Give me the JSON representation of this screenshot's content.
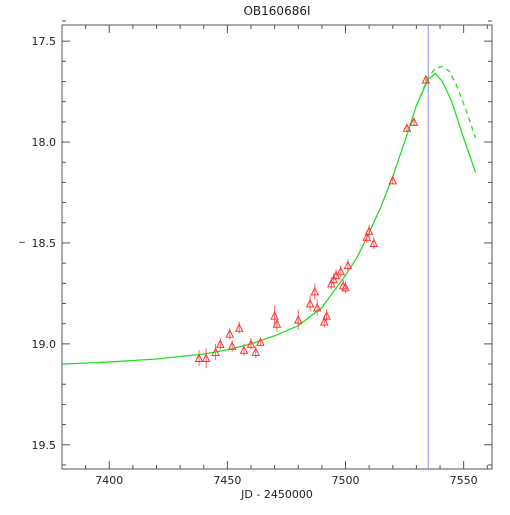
{
  "chart_data": {
    "type": "scatter",
    "title": "OB160686I",
    "xlabel": "JD - 2450000",
    "ylabel": "_",
    "xlim": [
      7380,
      7562
    ],
    "ylim": [
      19.62,
      17.42
    ],
    "y_inverted": true,
    "xticks": [
      7400,
      7450,
      7500,
      7550
    ],
    "yticks": [
      17.5,
      18.0,
      18.5,
      19.0,
      19.5
    ],
    "xtick_labels": [
      "7400",
      "7450",
      "7500",
      "7550"
    ],
    "ytick_labels": [
      "17.5",
      "18.0",
      "18.5",
      "19.0",
      "19.5"
    ],
    "grid": false,
    "vertical_line": {
      "x": 7535,
      "color": "#8888ff"
    },
    "colors": {
      "points": "#ff3333",
      "errorbars": "#ff6666",
      "model": "#22dd22"
    },
    "series": [
      {
        "name": "",
        "kind": "points",
        "marker": "triangle",
        "points": [
          {
            "x": 7438,
            "y": 19.07,
            "e": 0.04
          },
          {
            "x": 7441,
            "y": 19.07,
            "e": 0.05
          },
          {
            "x": 7445,
            "y": 19.04,
            "e": 0.04
          },
          {
            "x": 7447,
            "y": 19.0,
            "e": 0.03
          },
          {
            "x": 7451,
            "y": 18.95,
            "e": 0.03
          },
          {
            "x": 7452,
            "y": 19.01,
            "e": 0.03
          },
          {
            "x": 7455,
            "y": 18.92,
            "e": 0.03
          },
          {
            "x": 7457,
            "y": 19.03,
            "e": 0.03
          },
          {
            "x": 7460,
            "y": 19.0,
            "e": 0.03
          },
          {
            "x": 7462,
            "y": 19.04,
            "e": 0.03
          },
          {
            "x": 7464,
            "y": 18.99,
            "e": 0.02
          },
          {
            "x": 7470,
            "y": 18.86,
            "e": 0.05
          },
          {
            "x": 7471,
            "y": 18.9,
            "e": 0.04
          },
          {
            "x": 7480,
            "y": 18.88,
            "e": 0.05
          },
          {
            "x": 7485,
            "y": 18.8,
            "e": 0.04
          },
          {
            "x": 7487,
            "y": 18.74,
            "e": 0.04
          },
          {
            "x": 7488,
            "y": 18.82,
            "e": 0.04
          },
          {
            "x": 7491,
            "y": 18.89,
            "e": 0.03
          },
          {
            "x": 7492,
            "y": 18.86,
            "e": 0.03
          },
          {
            "x": 7494,
            "y": 18.7,
            "e": 0.03
          },
          {
            "x": 7495,
            "y": 18.68,
            "e": 0.03
          },
          {
            "x": 7496,
            "y": 18.66,
            "e": 0.03
          },
          {
            "x": 7498,
            "y": 18.64,
            "e": 0.03
          },
          {
            "x": 7499,
            "y": 18.71,
            "e": 0.03
          },
          {
            "x": 7500,
            "y": 18.72,
            "e": 0.03
          },
          {
            "x": 7501,
            "y": 18.61,
            "e": 0.03
          },
          {
            "x": 7509,
            "y": 18.47,
            "e": 0.03
          },
          {
            "x": 7510,
            "y": 18.44,
            "e": 0.03
          },
          {
            "x": 7512,
            "y": 18.5,
            "e": 0.03
          },
          {
            "x": 7520,
            "y": 18.19,
            "e": 0.02
          },
          {
            "x": 7526,
            "y": 17.93,
            "e": 0.02
          },
          {
            "x": 7529,
            "y": 17.9,
            "e": 0.02
          },
          {
            "x": 7534,
            "y": 17.69,
            "e": 0.02
          }
        ]
      },
      {
        "name": "",
        "kind": "line",
        "style": "solid",
        "points": [
          {
            "x": 7380,
            "y": 19.1
          },
          {
            "x": 7400,
            "y": 19.09
          },
          {
            "x": 7420,
            "y": 19.075
          },
          {
            "x": 7440,
            "y": 19.05
          },
          {
            "x": 7450,
            "y": 19.03
          },
          {
            "x": 7460,
            "y": 19.0
          },
          {
            "x": 7470,
            "y": 18.96
          },
          {
            "x": 7480,
            "y": 18.91
          },
          {
            "x": 7490,
            "y": 18.82
          },
          {
            "x": 7500,
            "y": 18.66
          },
          {
            "x": 7505,
            "y": 18.57
          },
          {
            "x": 7510,
            "y": 18.45
          },
          {
            "x": 7515,
            "y": 18.32
          },
          {
            "x": 7520,
            "y": 18.17
          },
          {
            "x": 7525,
            "y": 18.0
          },
          {
            "x": 7530,
            "y": 17.82
          },
          {
            "x": 7535,
            "y": 17.69
          },
          {
            "x": 7538,
            "y": 17.66
          },
          {
            "x": 7541,
            "y": 17.7
          },
          {
            "x": 7545,
            "y": 17.8
          },
          {
            "x": 7550,
            "y": 17.98
          },
          {
            "x": 7555,
            "y": 18.15
          }
        ]
      },
      {
        "name": "",
        "kind": "line",
        "style": "dashed",
        "points": [
          {
            "x": 7530,
            "y": 17.82
          },
          {
            "x": 7535,
            "y": 17.68
          },
          {
            "x": 7538,
            "y": 17.635
          },
          {
            "x": 7541,
            "y": 17.625
          },
          {
            "x": 7544,
            "y": 17.65
          },
          {
            "x": 7547,
            "y": 17.72
          },
          {
            "x": 7551,
            "y": 17.84
          },
          {
            "x": 7555,
            "y": 17.98
          }
        ]
      }
    ]
  }
}
